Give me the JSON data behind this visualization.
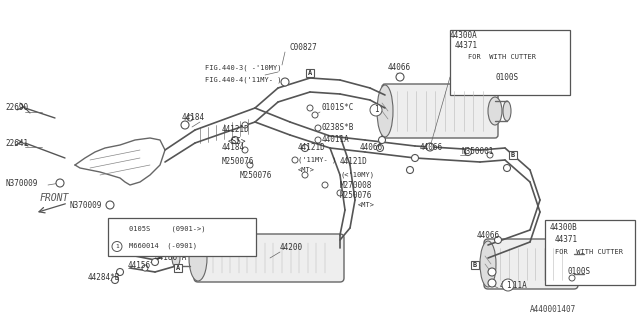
{
  "bg_color": "#ffffff",
  "diagram_id": "A440001407",
  "figsize": [
    6.4,
    3.2
  ],
  "dpi": 100,
  "xlim": [
    0,
    640
  ],
  "ylim": [
    0,
    320
  ]
}
